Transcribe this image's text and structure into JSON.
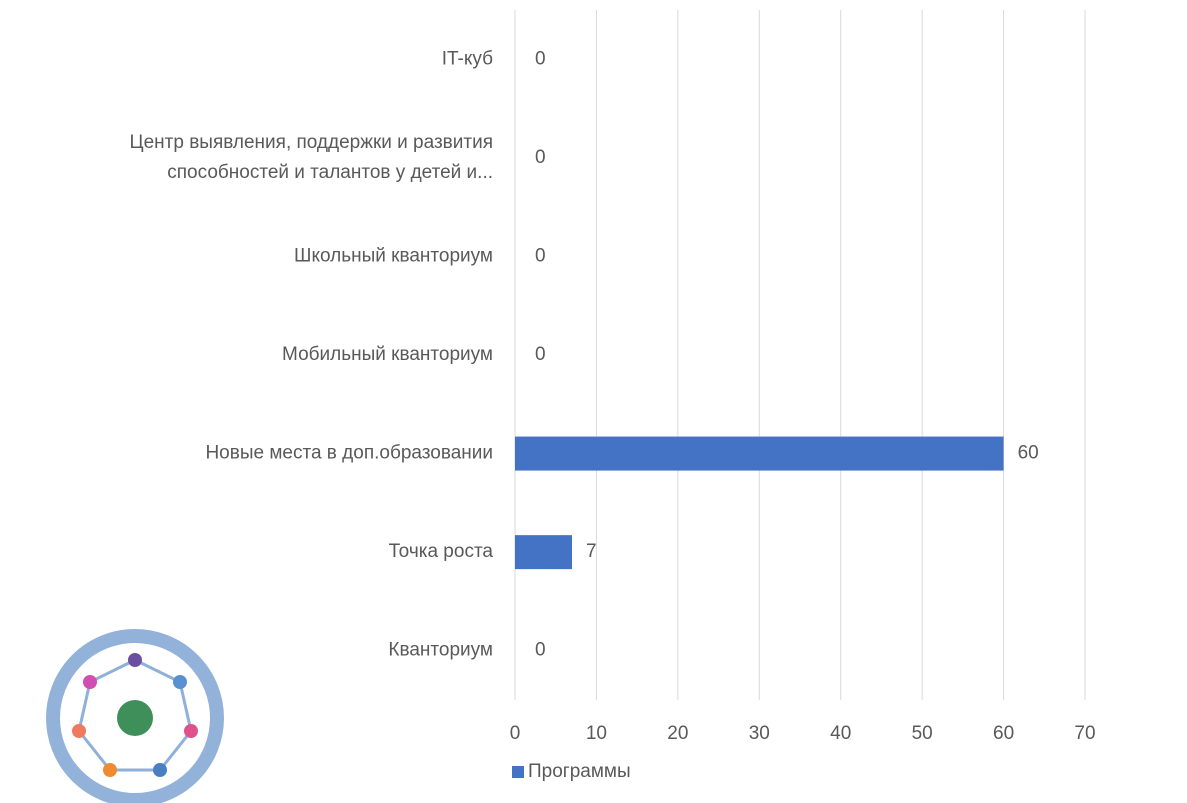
{
  "chart_data": {
    "type": "bar",
    "orientation": "horizontal",
    "categories": [
      "IT-куб",
      "Центр выявления, поддержки и развития способностей и талантов у детей и...",
      "Школьный кванториум",
      "Мобильный кванториум",
      "Новые места в доп.образовании",
      "Точка роста",
      "Кванториум"
    ],
    "series": [
      {
        "name": "Программы",
        "color": "#4472c4",
        "values": [
          0,
          0,
          0,
          0,
          60,
          7,
          0
        ]
      }
    ],
    "xlim": [
      0,
      70
    ],
    "xticks": [
      0,
      10,
      20,
      30,
      40,
      50,
      60,
      70
    ],
    "grid": true,
    "legend": "bottom"
  }
}
